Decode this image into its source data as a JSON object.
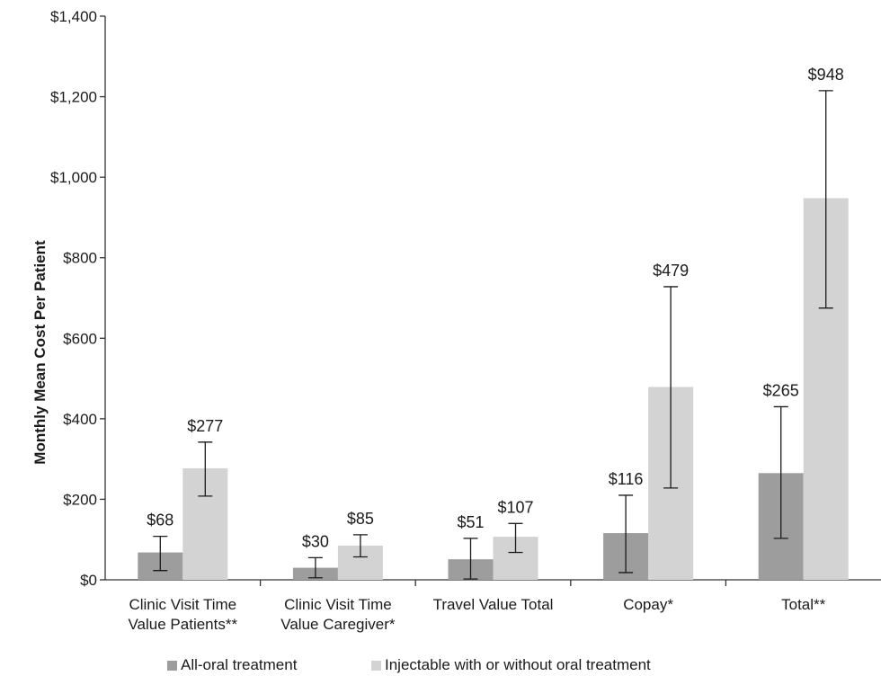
{
  "chart_data": {
    "type": "bar",
    "title": "",
    "xlabel": "",
    "ylabel": "Monthly Mean Cost Per Patient",
    "ylim": [
      0,
      1400
    ],
    "yticks": [
      0,
      200,
      400,
      600,
      800,
      1000,
      1200,
      1400
    ],
    "ytick_labels": [
      "$0",
      "$200",
      "$400",
      "$600",
      "$800",
      "$1,000",
      "$1,200",
      "$1,400"
    ],
    "grid": false,
    "legend_position": "bottom",
    "categories": [
      [
        "Clinic Visit Time",
        "Value Patients**"
      ],
      [
        "Clinic Visit Time",
        "Value Caregiver*"
      ],
      [
        "Travel Value Total"
      ],
      [
        "Copay*"
      ],
      [
        "Total**"
      ]
    ],
    "series": [
      {
        "name": "All-oral treatment",
        "color": "#9d9d9d",
        "values": [
          68,
          30,
          51,
          116,
          265
        ],
        "labels": [
          "$68",
          "$30",
          "$51",
          "$116",
          "$265"
        ],
        "error_low": [
          23,
          5,
          2,
          18,
          103
        ],
        "error_high": [
          108,
          55,
          103,
          210,
          430
        ]
      },
      {
        "name": "Injectable with or without oral treatment",
        "color": "#d3d3d3",
        "values": [
          277,
          85,
          107,
          479,
          948
        ],
        "labels": [
          "$277",
          "$85",
          "$107",
          "$479",
          "$948"
        ],
        "error_low": [
          208,
          57,
          68,
          228,
          675
        ],
        "error_high": [
          342,
          112,
          140,
          728,
          1215
        ]
      }
    ]
  }
}
